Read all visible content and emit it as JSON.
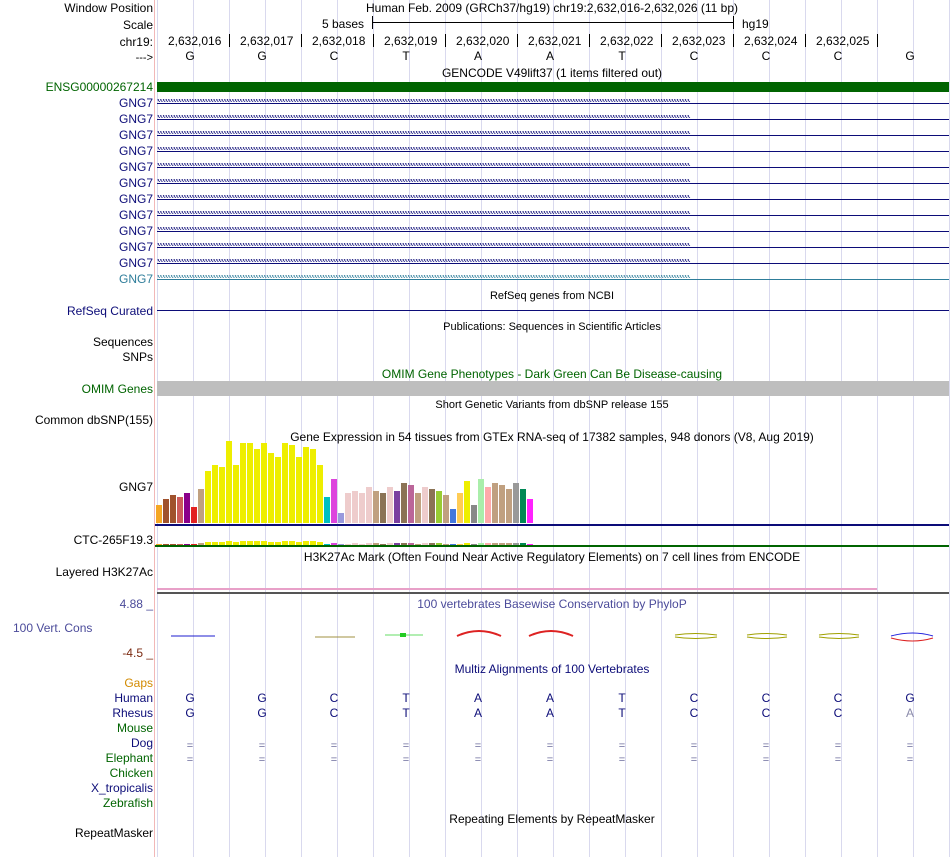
{
  "header": {
    "window_position_label": "Window Position",
    "scale_label": "Scale",
    "chrom_label": "chr19:",
    "arrow_label": "--->",
    "title": "Human Feb. 2009 (GRCh37/hg19)   chr19:2,632,016-2,632,026 (11 bp)",
    "scale_text": "5 bases",
    "assembly": "hg19"
  },
  "ruler": {
    "positions": [
      "2,632,016",
      "2,632,017",
      "2,632,018",
      "2,632,019",
      "2,632,020",
      "2,632,021",
      "2,632,022",
      "2,632,023",
      "2,632,024",
      "2,632,025"
    ],
    "bases": [
      "G",
      "G",
      "C",
      "T",
      "A",
      "A",
      "T",
      "C",
      "C",
      "C",
      "G"
    ]
  },
  "gencode": {
    "title": "GENCODE V49lift37 (1 items filtered out)",
    "ensg_label": "ENSG00000267214",
    "transcripts": [
      "GNG7",
      "GNG7",
      "GNG7",
      "GNG7",
      "GNG7",
      "GNG7",
      "GNG7",
      "GNG7",
      "GNG7",
      "GNG7",
      "GNG7",
      "GNG7"
    ]
  },
  "refseq": {
    "title": "RefSeq genes from NCBI",
    "label": "RefSeq Curated"
  },
  "publications": {
    "title": "Publications: Sequences in Scientific Articles",
    "sequences_label": "Sequences",
    "snps_label": "SNPs"
  },
  "omim": {
    "title": "OMIM Gene Phenotypes - Dark Green Can Be Disease-causing",
    "label": "OMIM Genes"
  },
  "dbsnp": {
    "title": "Short Genetic Variants from dbSNP release 155",
    "label": "Common dbSNP(155)"
  },
  "gtex": {
    "title": "Gene Expression in 54 tissues from GTEx RNA-seq of 17382 samples, 948 donors (V8, Aug 2019)",
    "gene_label": "GNG7",
    "gene2_label": "CTC-265F19.3",
    "bar_colors": [
      "#f5a623",
      "#a0522d",
      "#a0522d",
      "#cd5c5c",
      "#8b008b",
      "#e22222",
      "#c0a080",
      "#eeee00",
      "#eeee00",
      "#eeee00",
      "#eeee00",
      "#eeee00",
      "#eeee00",
      "#eeee00",
      "#eeee00",
      "#eeee00",
      "#eeee00",
      "#eeee00",
      "#eeee00",
      "#eeee00",
      "#eeee00",
      "#eeee00",
      "#eeee00",
      "#eeee00",
      "#00c0c0",
      "#dd44dd",
      "#9999dd",
      "#eecccc",
      "#eecccc",
      "#eecccc",
      "#eecccc",
      "#c0a080",
      "#8b7355",
      "#eecccc",
      "#7b3fa0",
      "#8b7355",
      "#bb6699",
      "#c0a080",
      "#eecccc",
      "#8b7355",
      "#99cc33",
      "#c0a080",
      "#4477dd",
      "#ffcc55",
      "#eeee00",
      "#888888",
      "#aaeeaa",
      "#ffaaaa",
      "#c0a080",
      "#c0a080",
      "#c0a080",
      "#999999",
      "#008855",
      "#ff22ff"
    ],
    "values": [
      18,
      24,
      28,
      26,
      30,
      16,
      34,
      52,
      58,
      56,
      82,
      58,
      80,
      80,
      74,
      80,
      70,
      66,
      80,
      78,
      66,
      76,
      74,
      58,
      26,
      44,
      10,
      30,
      32,
      30,
      36,
      32,
      30,
      36,
      32,
      40,
      38,
      30,
      36,
      34,
      32,
      28,
      14,
      30,
      42,
      18,
      44,
      36,
      40,
      38,
      34,
      40,
      34,
      24
    ]
  },
  "h3k27ac": {
    "title": "H3K27Ac Mark (Often Found Near Active Regulatory Elements) on 7 cell lines from ENCODE",
    "label": "Layered H3K27Ac"
  },
  "phylop": {
    "title": "100 vertebrates Basewise Conservation by PhyloP",
    "label": "100 Vert. Cons",
    "max_label": "4.88 _",
    "min_label": "-4.5 _"
  },
  "multiz": {
    "title": "Multiz Alignments of 100 Vertebrates",
    "species": [
      "Gaps",
      "Human",
      "Rhesus",
      "Mouse",
      "Dog",
      "Elephant",
      "Chicken",
      "X_tropicalis",
      "Zebrafish"
    ],
    "human_bases": [
      "G",
      "G",
      "C",
      "T",
      "A",
      "A",
      "T",
      "C",
      "C",
      "C",
      "G"
    ],
    "rhesus_bases": [
      "G",
      "G",
      "C",
      "T",
      "A",
      "A",
      "T",
      "C",
      "C",
      "C",
      "A"
    ],
    "gap_glyph": "="
  },
  "repeatmasker": {
    "title": "Repeating Elements by RepeatMasker",
    "label": "RepeatMasker"
  },
  "colors": {
    "gencode_green": "#006400",
    "nav_blue": "#0c0c78",
    "omim_gray": "#bebebe",
    "omim_title_green": "#006400",
    "phylop_blue": "#4b4b9a"
  }
}
